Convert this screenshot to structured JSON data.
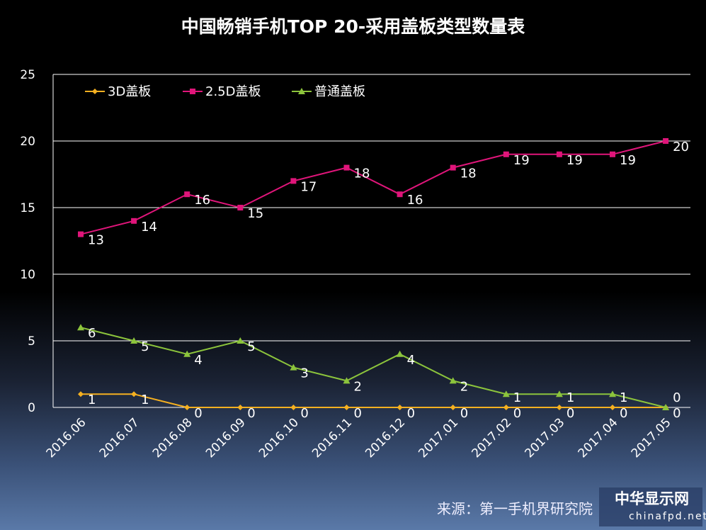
{
  "chart_data": {
    "type": "line",
    "title": "中国畅销手机TOP 20-采用盖板类型数量表",
    "categories": [
      "2016.06",
      "2016.07",
      "2016.08",
      "2016.09",
      "2016.10",
      "2016.11",
      "2016.12",
      "2017.01",
      "2017.02",
      "2017.03",
      "2017.04",
      "2017.05"
    ],
    "ylim": [
      0,
      25
    ],
    "yticks": [
      0,
      5,
      10,
      15,
      20,
      25
    ],
    "grid": true,
    "legend_position": "top-left",
    "series": [
      {
        "name": "3D盖板",
        "color": "#f5b020",
        "marker": "diamond",
        "values": [
          1,
          1,
          0,
          0,
          0,
          0,
          0,
          0,
          0,
          0,
          0,
          0
        ]
      },
      {
        "name": "2.5D盖板",
        "color": "#e0157a",
        "marker": "square",
        "values": [
          13,
          14,
          16,
          15,
          17,
          18,
          16,
          18,
          19,
          19,
          19,
          20
        ]
      },
      {
        "name": "普通盖板",
        "color": "#8cc43c",
        "marker": "triangle",
        "values": [
          6,
          5,
          4,
          5,
          3,
          2,
          4,
          2,
          1,
          1,
          1,
          0
        ]
      }
    ]
  },
  "source": "来源：第一手机界研究院",
  "logo": {
    "cn": "中华显示网",
    "en": "chinafpd.net"
  }
}
